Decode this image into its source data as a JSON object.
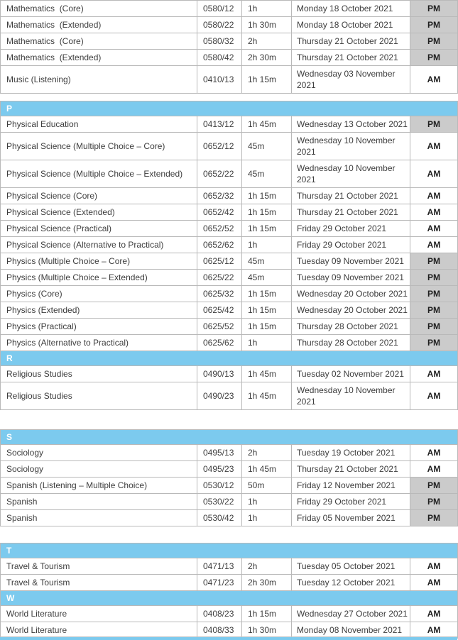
{
  "document": {
    "kind": "exam-timetable-table",
    "column_keys": [
      "subject",
      "code",
      "duration",
      "date",
      "session"
    ]
  },
  "colors": {
    "section_header_bg": "#7ccaee",
    "section_header_text": "#ffffff",
    "pm_cell_bg": "#cbcbcb",
    "am_cell_bg": "#ffffff",
    "border": "#b9b9b9",
    "text": "#3d3d3d"
  },
  "timetable": {
    "blocks": [
      {
        "sections": [
          {
            "letter": null,
            "rows": [
              {
                "subject": "Mathematics  (Core)",
                "code": "0580/12",
                "duration": "1h",
                "date": "Monday 18 October 2021",
                "session": "PM"
              },
              {
                "subject": "Mathematics  (Extended)",
                "code": "0580/22",
                "duration": "1h 30m",
                "date": "Monday 18 October 2021",
                "session": "PM"
              },
              {
                "subject": "Mathematics  (Core)",
                "code": "0580/32",
                "duration": "2h",
                "date": "Thursday 21 October 2021",
                "session": "PM"
              },
              {
                "subject": "Mathematics  (Extended)",
                "code": "0580/42",
                "duration": "2h 30m",
                "date": "Thursday 21 October 2021",
                "session": "PM"
              },
              {
                "subject": "Music (Listening)",
                "code": "0410/13",
                "duration": "1h 15m",
                "date": "Wednesday 03 November 2021",
                "session": "AM"
              }
            ]
          }
        ]
      },
      {
        "sections": [
          {
            "letter": "P",
            "rows": [
              {
                "subject": "Physical Education",
                "code": "0413/12",
                "duration": "1h 45m",
                "date": "Wednesday 13 October 2021",
                "session": "PM"
              },
              {
                "subject": "Physical Science (Multiple Choice – Core)",
                "code": "0652/12",
                "duration": "45m",
                "date": "Wednesday 10 November 2021",
                "session": "AM"
              },
              {
                "subject": "Physical Science (Multiple Choice – Extended)",
                "code": "0652/22",
                "duration": "45m",
                "date": "Wednesday 10 November 2021",
                "session": "AM"
              },
              {
                "subject": "Physical Science (Core)",
                "code": "0652/32",
                "duration": "1h 15m",
                "date": "Thursday 21 October 2021",
                "session": "AM"
              },
              {
                "subject": "Physical Science (Extended)",
                "code": "0652/42",
                "duration": "1h 15m",
                "date": "Thursday 21 October 2021",
                "session": "AM"
              },
              {
                "subject": "Physical Science (Practical)",
                "code": "0652/52",
                "duration": "1h 15m",
                "date": "Friday 29 October 2021",
                "session": "AM"
              },
              {
                "subject": "Physical Science (Alternative to Practical)",
                "code": "0652/62",
                "duration": "1h",
                "date": "Friday 29 October 2021",
                "session": "AM"
              },
              {
                "subject": "Physics (Multiple Choice – Core)",
                "code": "0625/12",
                "duration": "45m",
                "date": "Tuesday 09 November 2021",
                "session": "PM"
              },
              {
                "subject": "Physics (Multiple Choice – Extended)",
                "code": "0625/22",
                "duration": "45m",
                "date": "Tuesday 09 November 2021",
                "session": "PM"
              },
              {
                "subject": "Physics (Core)",
                "code": "0625/32",
                "duration": "1h 15m",
                "date": "Wednesday 20 October 2021",
                "session": "PM"
              },
              {
                "subject": "Physics (Extended)",
                "code": "0625/42",
                "duration": "1h 15m",
                "date": "Wednesday 20 October 2021",
                "session": "PM"
              },
              {
                "subject": "Physics (Practical)",
                "code": "0625/52",
                "duration": "1h 15m",
                "date": "Thursday 28 October 2021",
                "session": "PM"
              },
              {
                "subject": "Physics (Alternative to Practical)",
                "code": "0625/62",
                "duration": "1h",
                "date": "Thursday 28 October 2021",
                "session": "PM"
              }
            ]
          },
          {
            "letter": "R",
            "rows": [
              {
                "subject": "Religious Studies",
                "code": "0490/13",
                "duration": "1h 45m",
                "date": "Tuesday 02 November 2021",
                "session": "AM"
              },
              {
                "subject": "Religious Studies",
                "code": "0490/23",
                "duration": "1h 45m",
                "date": "Wednesday 10 November 2021",
                "session": "AM"
              }
            ]
          }
        ]
      },
      {
        "sections": [
          {
            "letter": "S",
            "rows": [
              {
                "subject": "Sociology",
                "code": "0495/13",
                "duration": "2h",
                "date": "Tuesday 19 October 2021",
                "session": "AM"
              },
              {
                "subject": "Sociology",
                "code": "0495/23",
                "duration": "1h 45m",
                "date": "Thursday 21 October 2021",
                "session": "AM"
              },
              {
                "subject": "Spanish (Listening – Multiple Choice)",
                "code": "0530/12",
                "duration": "50m",
                "date": "Friday 12 November 2021",
                "session": "PM"
              },
              {
                "subject": "Spanish",
                "code": "0530/22",
                "duration": "1h",
                "date": "Friday 29 October 2021",
                "session": "PM"
              },
              {
                "subject": "Spanish",
                "code": "0530/42",
                "duration": "1h",
                "date": "Friday 05 November 2021",
                "session": "PM"
              }
            ]
          }
        ]
      },
      {
        "sections": [
          {
            "letter": "T",
            "rows": [
              {
                "subject": "Travel & Tourism",
                "code": "0471/13",
                "duration": "2h",
                "date": "Tuesday 05 October 2021",
                "session": "AM"
              },
              {
                "subject": "Travel & Tourism",
                "code": "0471/23",
                "duration": "2h 30m",
                "date": "Tuesday 12 October 2021",
                "session": "AM"
              }
            ]
          },
          {
            "letter": "W",
            "rows": [
              {
                "subject": "World Literature",
                "code": "0408/23",
                "duration": "1h 15m",
                "date": "Wednesday 27 October 2021",
                "session": "AM"
              },
              {
                "subject": "World Literature",
                "code": "0408/33",
                "duration": "1h 30m",
                "date": "Monday 08 November 2021",
                "session": "AM"
              }
            ]
          }
        ]
      }
    ],
    "next_section_header_partial": true
  }
}
